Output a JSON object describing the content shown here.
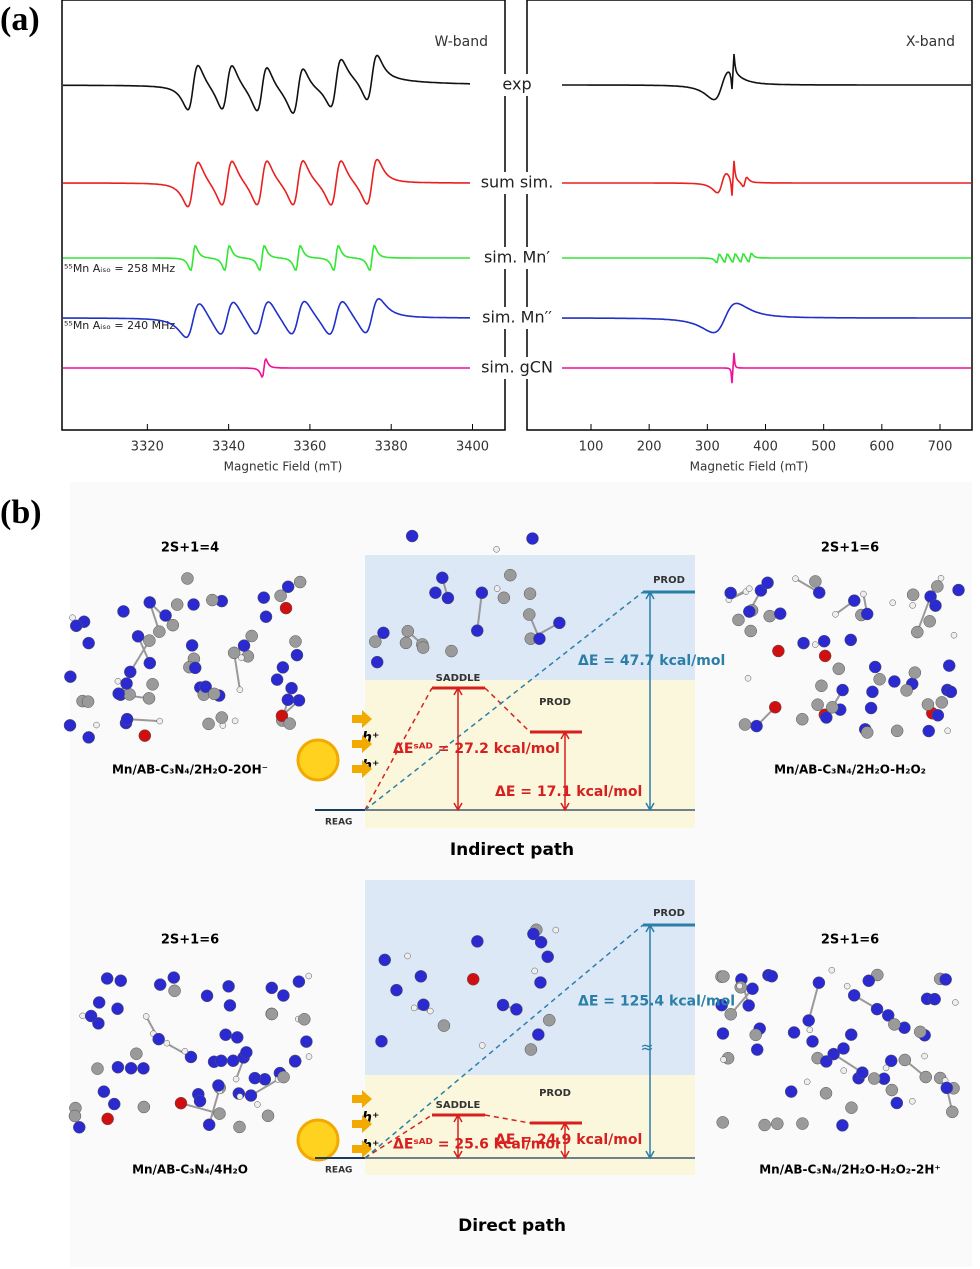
{
  "panel_a": {
    "label": "(a)",
    "left": {
      "title": "W-band",
      "xlim": [
        3299,
        3408
      ],
      "xticks": [
        3320,
        3340,
        3360,
        3380,
        3400
      ],
      "xlabel": "Magnetic Field (mT)"
    },
    "right": {
      "title": "X-band",
      "xlim": [
        -10,
        755
      ],
      "xticks": [
        100,
        200,
        300,
        400,
        500,
        600,
        700
      ],
      "xlabel": "Magnetic Field (mT)"
    },
    "traces": [
      "exp",
      "sum sim.",
      "sim. Mn′",
      "sim. Mn′′",
      "sim. gCN"
    ],
    "annotations": [
      "⁵⁵Mn Aᵢₛₒ = 258 MHz",
      "⁵⁵Mn Aᵢₛₒ = 240 MHz"
    ]
  },
  "panel_b": {
    "label": "(b)",
    "indirect": {
      "spin_left": "2S+1=4",
      "spin_right": "2S+1=6",
      "mol_left": "Mn/AB-C₃N₄/2H₂O-2OH⁻",
      "mol_right": "Mn/AB-C₃N₄/2H₂O-H₂O₂",
      "levels": [
        "REAG",
        "SADDLE",
        "PROD",
        "PROD"
      ],
      "hole": "h⁺",
      "energies": [
        "ΔEˢᴬᴰ = 27.2 kcal/mol",
        "ΔE = 17.1 kcal/mol",
        "ΔE = 47.7 kcal/mol"
      ],
      "title": "Indirect path"
    },
    "direct": {
      "spin_left": "2S+1=6",
      "spin_right": "2S+1=6",
      "mol_left": "Mn/AB-C₃N₄/4H₂O",
      "mol_right": "Mn/AB-C₃N₄/2H₂O-H₂O₂-2H⁺",
      "levels": [
        "REAG",
        "SADDLE",
        "PROD",
        "PROD"
      ],
      "hole": "h⁺",
      "energies": [
        "ΔEˢᴬᴰ = 25.6 kcal/mol",
        "ΔE = 24.9 kcal/mol",
        "ΔE = 125.4 kcal/mol"
      ],
      "title": "Direct path"
    }
  }
}
